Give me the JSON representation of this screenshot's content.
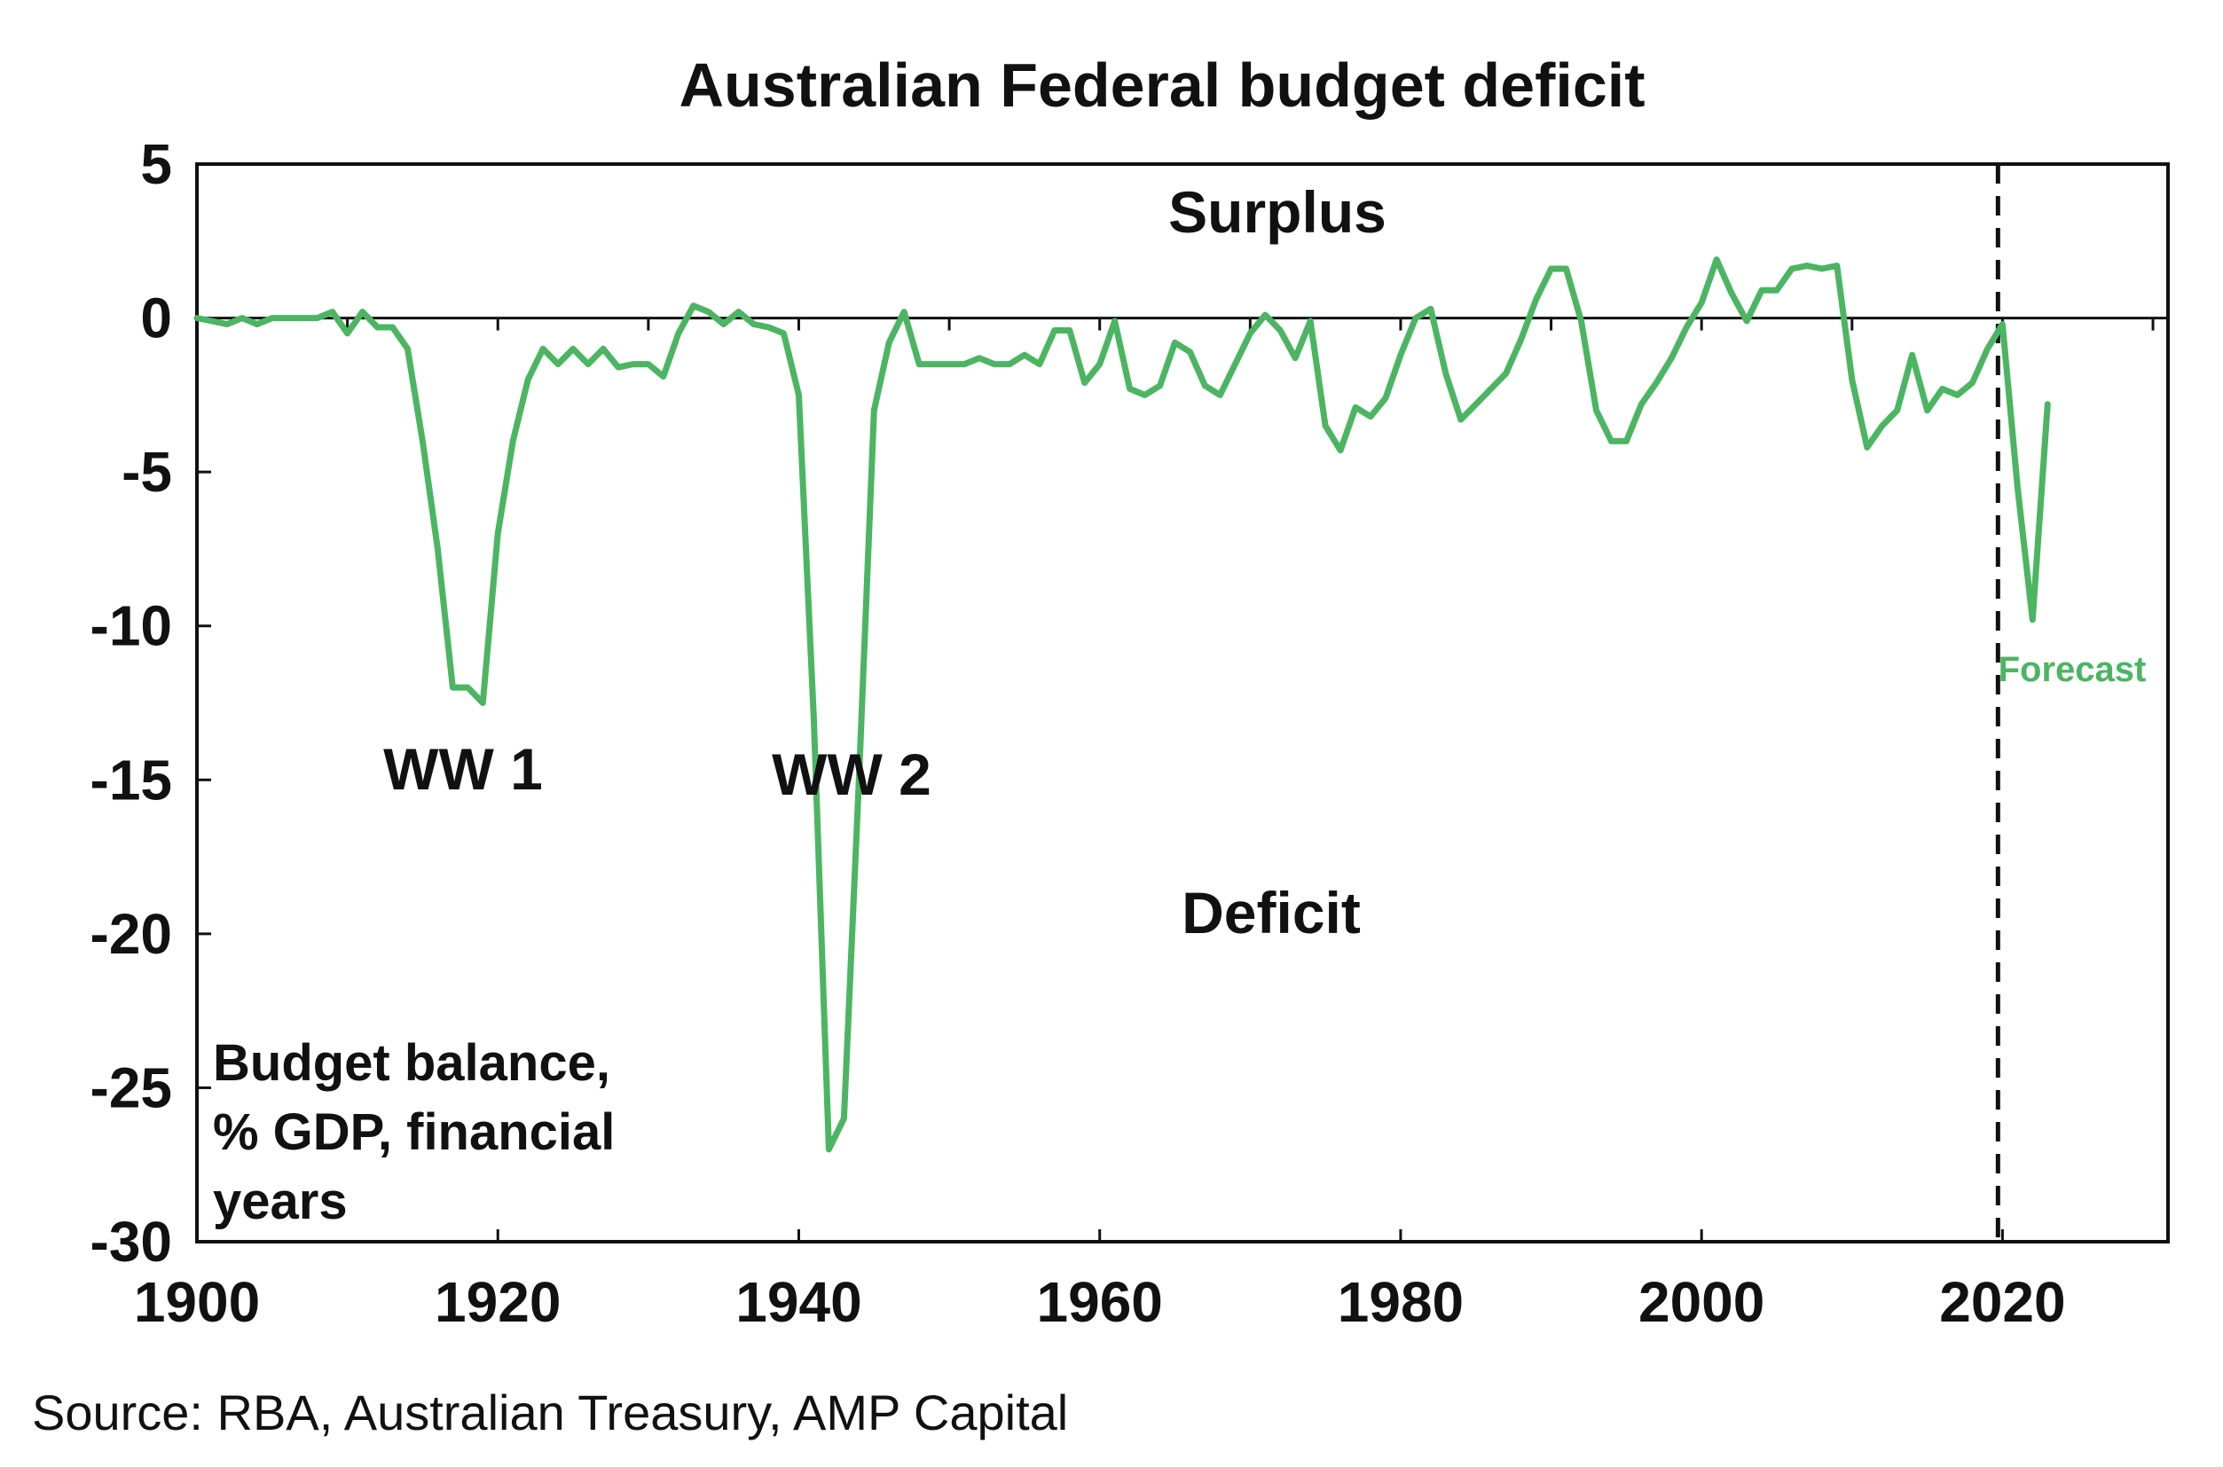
{
  "colors": {
    "series": "#4bb562",
    "axis": "#111111",
    "forecast_line": "#111111"
  },
  "chart_data": {
    "type": "line",
    "title": "Australian Federal budget deficit",
    "ylabel_lines": [
      "Budget balance,",
      "% GDP, financial",
      "years"
    ],
    "xlim": [
      1900,
      2031
    ],
    "ylim": [
      -30,
      5
    ],
    "xticks": [
      1900,
      1920,
      1940,
      1960,
      1980,
      2000,
      2020
    ],
    "xtick_labels": [
      "1900",
      "1920",
      "1940",
      "1960",
      "1980",
      "2000",
      "2020"
    ],
    "yticks": [
      5,
      0,
      -5,
      -10,
      -15,
      -20,
      -25,
      -30
    ],
    "ytick_labels": [
      "5",
      "0",
      "-5",
      "-10",
      "-15",
      "-20",
      "-25",
      "-30"
    ],
    "forecast_start_year": 2019.7,
    "annotations": {
      "surplus": "Surplus",
      "deficit": "Deficit",
      "ww1": "WW 1",
      "ww2": "WW 2",
      "forecast": "Forecast"
    },
    "source": "Source: RBA, Australian Treasury, AMP Capital",
    "series": [
      {
        "x": [
          1900,
          1901,
          1902,
          1903,
          1904,
          1905,
          1906,
          1907,
          1908,
          1909,
          1910,
          1911,
          1912,
          1913,
          1914,
          1915,
          1916,
          1917,
          1918,
          1919,
          1920,
          1921,
          1922,
          1923,
          1924,
          1925,
          1926,
          1927,
          1928,
          1929,
          1930,
          1931,
          1932,
          1933,
          1934,
          1935,
          1936,
          1937,
          1938,
          1939,
          1940,
          1941,
          1942,
          1943,
          1944,
          1945,
          1946,
          1947,
          1948,
          1949,
          1950,
          1951,
          1952,
          1953,
          1954,
          1955,
          1956,
          1957,
          1958,
          1959,
          1960,
          1961,
          1962,
          1963,
          1964,
          1965,
          1966,
          1967,
          1968,
          1969,
          1970,
          1971,
          1972,
          1973,
          1974,
          1975,
          1976,
          1977,
          1978,
          1979,
          1980,
          1981,
          1982,
          1983,
          1984,
          1985,
          1986,
          1987,
          1988,
          1989,
          1990,
          1991,
          1992,
          1993,
          1994,
          1995,
          1996,
          1997,
          1998,
          1999,
          2000,
          2001,
          2002,
          2003,
          2004,
          2005,
          2006,
          2007,
          2008,
          2009,
          2010,
          2011,
          2012,
          2013,
          2014,
          2015,
          2016,
          2017,
          2018,
          2019,
          2020,
          2021,
          2022,
          2023
        ],
        "values": [
          0,
          -0.1,
          -0.2,
          0,
          -0.2,
          0,
          0,
          0,
          0,
          0.2,
          -0.5,
          0.2,
          -0.3,
          -0.3,
          -1,
          -4,
          -7.5,
          -12,
          -12,
          -12.5,
          -7,
          -4,
          -2,
          -1,
          -1.5,
          -1,
          -1.5,
          -1,
          -1.6,
          -1.5,
          -1.5,
          -1.9,
          -0.5,
          0.4,
          0.2,
          -0.2,
          0.2,
          -0.2,
          -0.3,
          -0.5,
          -2.5,
          -13,
          -27,
          -26,
          -15,
          -3,
          -0.8,
          0.2,
          -1.5,
          -1.5,
          -1.5,
          -1.5,
          -1.3,
          -1.5,
          -1.5,
          -1.2,
          -1.5,
          -0.4,
          -0.4,
          -2.1,
          -1.5,
          -0.1,
          -2.3,
          -2.5,
          -2.2,
          -0.8,
          -1.1,
          -2.2,
          -2.5,
          -1.5,
          -0.5,
          0.1,
          -0.4,
          -1.3,
          -0.1,
          -3.5,
          -4.3,
          -2.9,
          -3.2,
          -2.6,
          -1.2,
          0,
          0.3,
          -1.8,
          -3.3,
          -2.8,
          -2.3,
          -1.8,
          -0.7,
          0.6,
          1.6,
          1.6,
          -0.1,
          -3,
          -4,
          -4,
          -2.8,
          -2.1,
          -1.3,
          -0.3,
          0.5,
          1.9,
          0.8,
          -0.1,
          0.9,
          0.9,
          1.6,
          1.7,
          1.6,
          1.7,
          -2,
          -4.2,
          -3.5,
          -3,
          -1.2,
          -3,
          -2.3,
          -2.5,
          -2.1,
          -1,
          -0.2,
          -5.5,
          -9.8,
          -2.8
        ]
      }
    ]
  }
}
